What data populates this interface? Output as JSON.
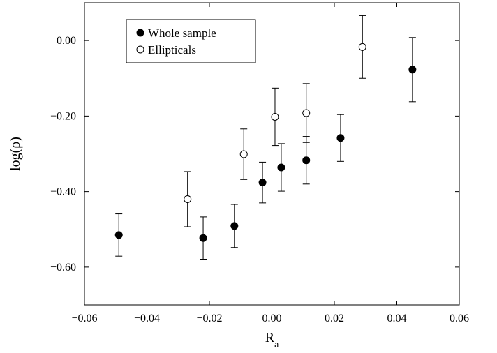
{
  "chart_data": {
    "type": "scatter",
    "xlabel": "R",
    "xlabel_subscript": "a",
    "ylabel": "log(ρ)",
    "xlim": [
      -0.06,
      0.06
    ],
    "ylim": [
      -0.7,
      0.1
    ],
    "x_ticks": [
      -0.06,
      -0.04,
      -0.02,
      0.0,
      0.02,
      0.04,
      0.06
    ],
    "x_tick_labels": [
      "−0.06",
      "−0.04",
      "−0.02",
      "0.00",
      "0.02",
      "0.04",
      "0.06"
    ],
    "y_ticks": [
      0.0,
      -0.2,
      -0.4,
      -0.6
    ],
    "y_tick_labels": [
      "0.00",
      "−0.20",
      "−0.40",
      "−0.60"
    ],
    "grid": false,
    "legend_position": "top-left",
    "series": [
      {
        "name": "Whole sample",
        "marker": "filled-circle",
        "points": [
          {
            "x": -0.049,
            "y": -0.515,
            "err": 0.056
          },
          {
            "x": -0.022,
            "y": -0.523,
            "err": 0.056
          },
          {
            "x": -0.012,
            "y": -0.491,
            "err": 0.057
          },
          {
            "x": -0.003,
            "y": -0.376,
            "err": 0.054
          },
          {
            "x": 0.003,
            "y": -0.336,
            "err": 0.063
          },
          {
            "x": 0.011,
            "y": -0.317,
            "err": 0.063
          },
          {
            "x": 0.022,
            "y": -0.258,
            "err": 0.062
          },
          {
            "x": 0.045,
            "y": -0.077,
            "err": 0.085
          }
        ]
      },
      {
        "name": "Ellipticals",
        "marker": "open-circle",
        "points": [
          {
            "x": -0.027,
            "y": -0.42,
            "err": 0.073
          },
          {
            "x": -0.009,
            "y": -0.301,
            "err": 0.067
          },
          {
            "x": 0.001,
            "y": -0.202,
            "err": 0.076
          },
          {
            "x": 0.011,
            "y": -0.192,
            "err": 0.078
          },
          {
            "x": 0.029,
            "y": -0.017,
            "err": 0.083
          }
        ]
      }
    ]
  }
}
